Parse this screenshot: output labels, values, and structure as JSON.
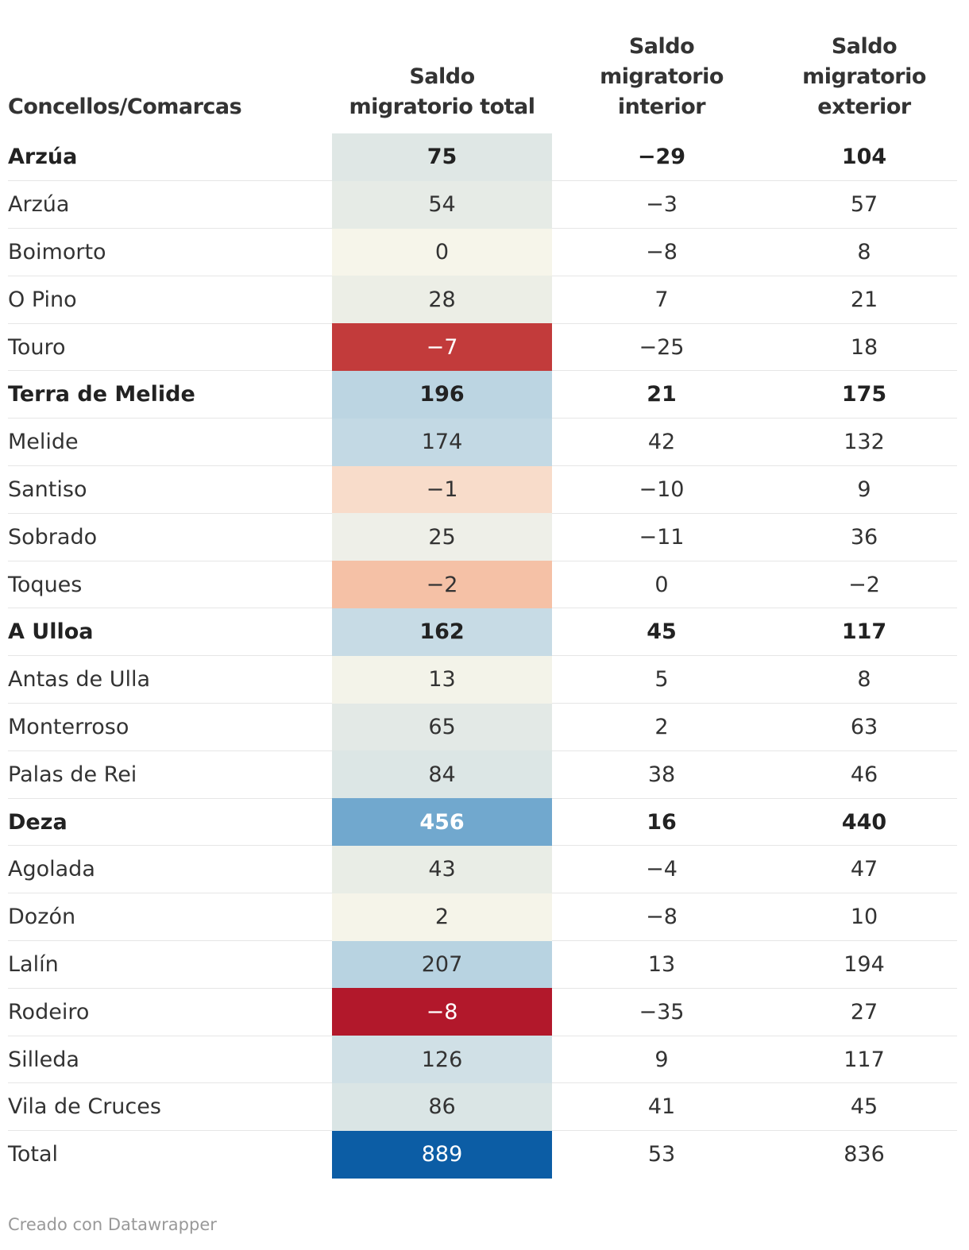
{
  "chart_data": {
    "type": "table",
    "columns": [
      "Concellos/Comarcas",
      "Saldo migratorio total",
      "Saldo migratorio interior",
      "Saldo migratorio exterior"
    ],
    "header_lines": [
      [
        "Concellos/Comarcas"
      ],
      [
        "Saldo",
        "migratorio total"
      ],
      [
        "Saldo",
        "migratorio",
        "interior"
      ],
      [
        "Saldo",
        "migratorio",
        "exterior"
      ]
    ],
    "rows": [
      {
        "name": "Arzúa",
        "bold": true,
        "total": 75,
        "interior": -29,
        "exterior": 104
      },
      {
        "name": "Arzúa",
        "bold": false,
        "total": 54,
        "interior": -3,
        "exterior": 57
      },
      {
        "name": "Boimorto",
        "bold": false,
        "total": 0,
        "interior": -8,
        "exterior": 8
      },
      {
        "name": "O Pino",
        "bold": false,
        "total": 28,
        "interior": 7,
        "exterior": 21
      },
      {
        "name": "Touro",
        "bold": false,
        "total": -7,
        "interior": -25,
        "exterior": 18
      },
      {
        "name": "Terra de Melide",
        "bold": true,
        "total": 196,
        "interior": 21,
        "exterior": 175
      },
      {
        "name": "Melide",
        "bold": false,
        "total": 174,
        "interior": 42,
        "exterior": 132
      },
      {
        "name": "Santiso",
        "bold": false,
        "total": -1,
        "interior": -10,
        "exterior": 9
      },
      {
        "name": "Sobrado",
        "bold": false,
        "total": 25,
        "interior": -11,
        "exterior": 36
      },
      {
        "name": "Toques",
        "bold": false,
        "total": -2,
        "interior": 0,
        "exterior": -2
      },
      {
        "name": "A Ulloa",
        "bold": true,
        "total": 162,
        "interior": 45,
        "exterior": 117
      },
      {
        "name": "Antas de Ulla",
        "bold": false,
        "total": 13,
        "interior": 5,
        "exterior": 8
      },
      {
        "name": "Monterroso",
        "bold": false,
        "total": 65,
        "interior": 2,
        "exterior": 63
      },
      {
        "name": "Palas de Rei",
        "bold": false,
        "total": 84,
        "interior": 38,
        "exterior": 46
      },
      {
        "name": "Deza",
        "bold": true,
        "total": 456,
        "interior": 16,
        "exterior": 440
      },
      {
        "name": "Agolada",
        "bold": false,
        "total": 43,
        "interior": -4,
        "exterior": 47
      },
      {
        "name": "Dozón",
        "bold": false,
        "total": 2,
        "interior": -8,
        "exterior": 10
      },
      {
        "name": "Lalín",
        "bold": false,
        "total": 207,
        "interior": 13,
        "exterior": 194
      },
      {
        "name": "Rodeiro",
        "bold": false,
        "total": -8,
        "interior": -35,
        "exterior": 27
      },
      {
        "name": "Silleda",
        "bold": false,
        "total": 126,
        "interior": 9,
        "exterior": 117
      },
      {
        "name": "Vila de Cruces",
        "bold": false,
        "total": 86,
        "interior": 41,
        "exterior": 45
      },
      {
        "name": "Total",
        "bold": false,
        "total": 889,
        "interior": 53,
        "exterior": 836
      }
    ],
    "heatmap_colors": {
      "-8": "#b2182b",
      "-7": "#c23b3b",
      "-2": "#f5c1a6",
      "-1": "#f8dcca",
      "0": "#f6f5ea",
      "2": "#f5f4e9",
      "13": "#f3f3e9",
      "25": "#eeefe8",
      "28": "#eceee6",
      "43": "#e9ede6",
      "54": "#e6ebe6",
      "65": "#e3e9e6",
      "75": "#dfe7e5",
      "84": "#dce6e5",
      "86": "#dae5e5",
      "126": "#d0e0e6",
      "162": "#c7dbe5",
      "174": "#c3d9e4",
      "196": "#bcd5e2",
      "207": "#b8d3e1",
      "456": "#71a8ce",
      "889": "#0c5da5"
    }
  },
  "footer": "Creado con Datawrapper"
}
